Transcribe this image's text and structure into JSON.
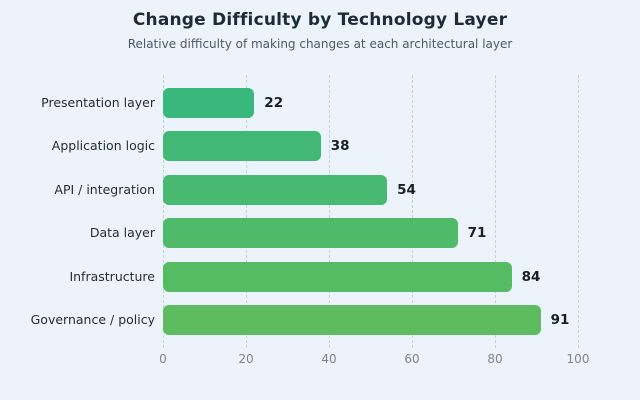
{
  "chart_data": {
    "type": "bar",
    "orientation": "horizontal",
    "title": "Change Difficulty by Technology Layer",
    "subtitle": "Relative difficulty of making changes at each architectural layer",
    "categories": [
      "Presentation layer",
      "Application logic",
      "API / integration",
      "Data layer",
      "Infrastructure",
      "Governance / policy"
    ],
    "values": [
      22,
      38,
      54,
      71,
      84,
      91
    ],
    "value_labels": [
      "22",
      "38",
      "54",
      "71",
      "84",
      "91"
    ],
    "xlabel": "",
    "ylabel": "",
    "xlim": [
      0,
      100
    ],
    "x_ticks": [
      0,
      20,
      40,
      60,
      80,
      100
    ],
    "x_tick_labels": [
      "0",
      "20",
      "40",
      "60",
      "80",
      "100"
    ],
    "grid": "vertical-dashed",
    "legend": "none",
    "bar_colors": [
      "#3ab77c",
      "#41b876",
      "#48b970",
      "#4fbb6a",
      "#56bc64",
      "#5dbd5e"
    ],
    "background_color": "#edf3fa",
    "gridline_color": "#c7d0dd",
    "title_color": "#1c2b36",
    "subtitle_color": "#4c5a68",
    "tick_color": "#7b8694"
  }
}
